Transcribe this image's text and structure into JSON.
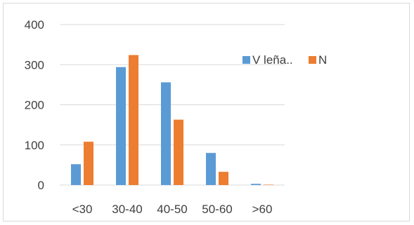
{
  "chart_data": {
    "type": "bar",
    "categories": [
      "<30",
      "30-40",
      "40-50",
      "50-60",
      ">60"
    ],
    "series": [
      {
        "name": "V leña..",
        "color": "#5b9bd5",
        "values": [
          52,
          294,
          256,
          80,
          3
        ]
      },
      {
        "name": "N",
        "color": "#ed7d31",
        "values": [
          108,
          324,
          163,
          33,
          1
        ]
      }
    ],
    "ylim": [
      0,
      400
    ],
    "y_ticks": [
      "0",
      "100",
      "200",
      "300",
      "400"
    ],
    "grid": true,
    "legend_position": "right"
  }
}
